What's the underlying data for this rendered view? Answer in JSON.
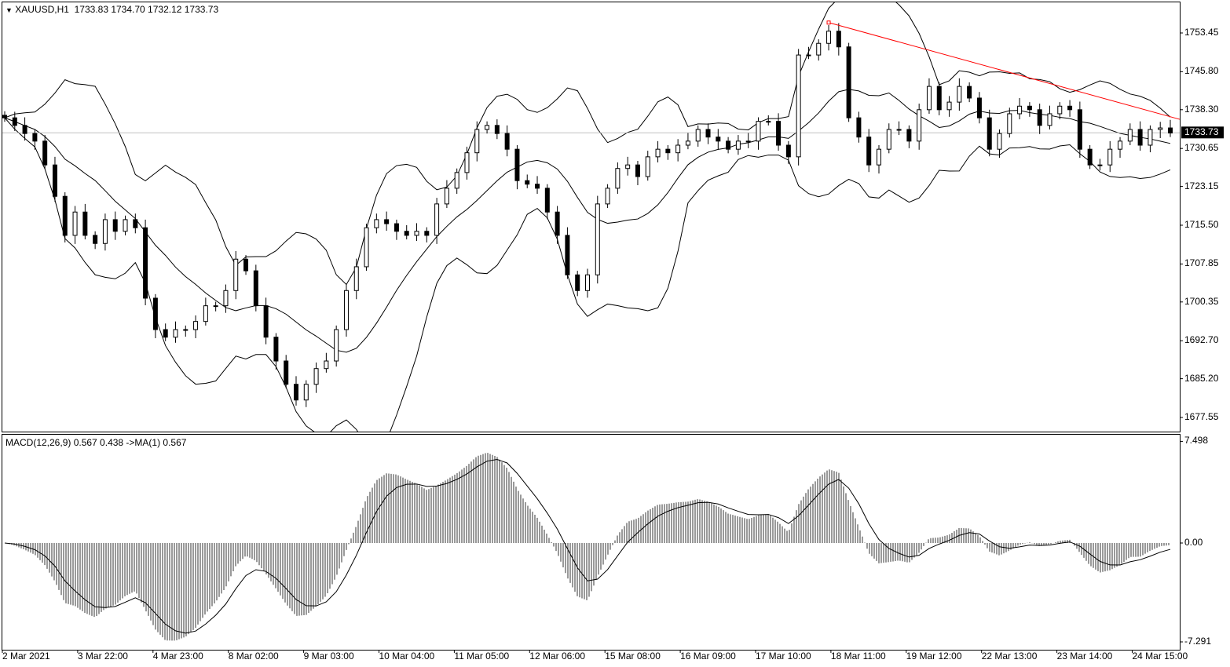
{
  "chart_data": {
    "type": "candlestick",
    "header": {
      "symbol": "XAUUSD,H1",
      "ohlc": "1733.83 1734.70 1732.12 1733.73"
    },
    "last_price": "1733.73",
    "ylim": [
      1672,
      1762
    ],
    "y_ticks": [
      "1753.45",
      "1745.80",
      "1738.30",
      "1730.65",
      "1723.15",
      "1715.50",
      "1707.85",
      "1700.35",
      "1692.70",
      "1685.20",
      "1677.55"
    ],
    "x_ticks": [
      "2 Mar 2021",
      "3 Mar 22:00",
      "4 Mar 23:00",
      "8 Mar 02:00",
      "9 Mar 03:00",
      "10 Mar 04:00",
      "11 Mar 05:00",
      "12 Mar 06:00",
      "15 Mar 08:00",
      "16 Mar 09:00",
      "17 Mar 10:00",
      "18 Mar 11:00",
      "19 Mar 12:00",
      "22 Mar 13:00",
      "23 Mar 14:00",
      "24 Mar 15:00"
    ],
    "close": [
      1736.7,
      1735.2,
      1733.6,
      1732.1,
      1727.4,
      1721.2,
      1713.5,
      1718.1,
      1713.5,
      1711.9,
      1716.6,
      1714.3,
      1716.6,
      1715.0,
      1701.1,
      1694.9,
      1693.4,
      1694.9,
      1694.9,
      1696.5,
      1699.6,
      1699.6,
      1702.6,
      1708.8,
      1706.5,
      1699.6,
      1693.4,
      1688.7,
      1684.1,
      1681.0,
      1684.1,
      1687.2,
      1688.7,
      1694.9,
      1702.6,
      1707.3,
      1715.0,
      1716.6,
      1715.8,
      1714.3,
      1713.5,
      1714.3,
      1713.5,
      1719.7,
      1722.8,
      1725.9,
      1729.8,
      1734.4,
      1735.2,
      1733.6,
      1730.5,
      1724.3,
      1723.6,
      1722.8,
      1718.1,
      1713.5,
      1705.7,
      1702.6,
      1705.7,
      1719.7,
      1722.8,
      1726.7,
      1727.4,
      1725.1,
      1729.0,
      1730.5,
      1729.8,
      1731.3,
      1732.1,
      1734.4,
      1732.9,
      1732.1,
      1730.5,
      1732.1,
      1732.1,
      1736.0,
      1736.0,
      1731.3,
      1729.0,
      1749.1,
      1749.1,
      1751.4,
      1753.8,
      1750.7,
      1736.7,
      1732.9,
      1727.4,
      1730.5,
      1734.4,
      1734.4,
      1732.1,
      1738.3,
      1742.9,
      1738.3,
      1739.8,
      1742.9,
      1740.6,
      1736.7,
      1730.5,
      1733.6,
      1737.5,
      1739.0,
      1738.3,
      1735.2,
      1737.5,
      1739.0,
      1738.3,
      1730.5,
      1727.4,
      1727.4,
      1730.5,
      1732.1,
      1734.4,
      1731.3,
      1734.4,
      1734.7,
      1733.7
    ],
    "bollinger": {
      "period": 20,
      "deviation": 2
    },
    "trendline": {
      "color": "#ff0000",
      "from_price": 1755.5,
      "to_price": 1736.4
    },
    "macd": {
      "label": "MACD(12,26,9) 0.567 0.438  ->MA(1) 0.567",
      "y_ticks": [
        "7.498",
        "0.00",
        "-7.291"
      ],
      "ylim": [
        -7.291,
        7.498
      ]
    },
    "colors": {
      "candles": "#000000",
      "bands": "#000000",
      "price_line": "#c0c0c0",
      "trendline": "#ff0000"
    }
  }
}
